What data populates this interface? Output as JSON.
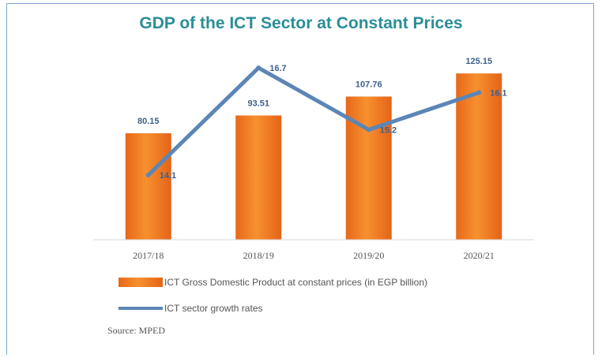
{
  "chart_data": {
    "type": "bar",
    "title": "GDP of the ICT Sector at Constant Prices",
    "categories": [
      "2017/18",
      "2018/19",
      "2019/20",
      "2020/21"
    ],
    "series": [
      {
        "name": "ICT Gross Domestic Product at constant prices (in EGP billion)",
        "type": "bar",
        "values": [
          80.15,
          93.51,
          107.76,
          125.15
        ],
        "labels": [
          "80.15",
          "93.51",
          "107.76",
          "125.15"
        ],
        "color": "#f07a22"
      },
      {
        "name": "ICT sector growth rates",
        "type": "line",
        "values": [
          14.1,
          16.7,
          15.2,
          16.1
        ],
        "labels": [
          "14.1",
          "16.7",
          "15.2",
          "16.1"
        ],
        "color": "#5b86b6"
      }
    ],
    "legend_position": "bottom-left",
    "grid": false
  },
  "source": "Source: MPED"
}
